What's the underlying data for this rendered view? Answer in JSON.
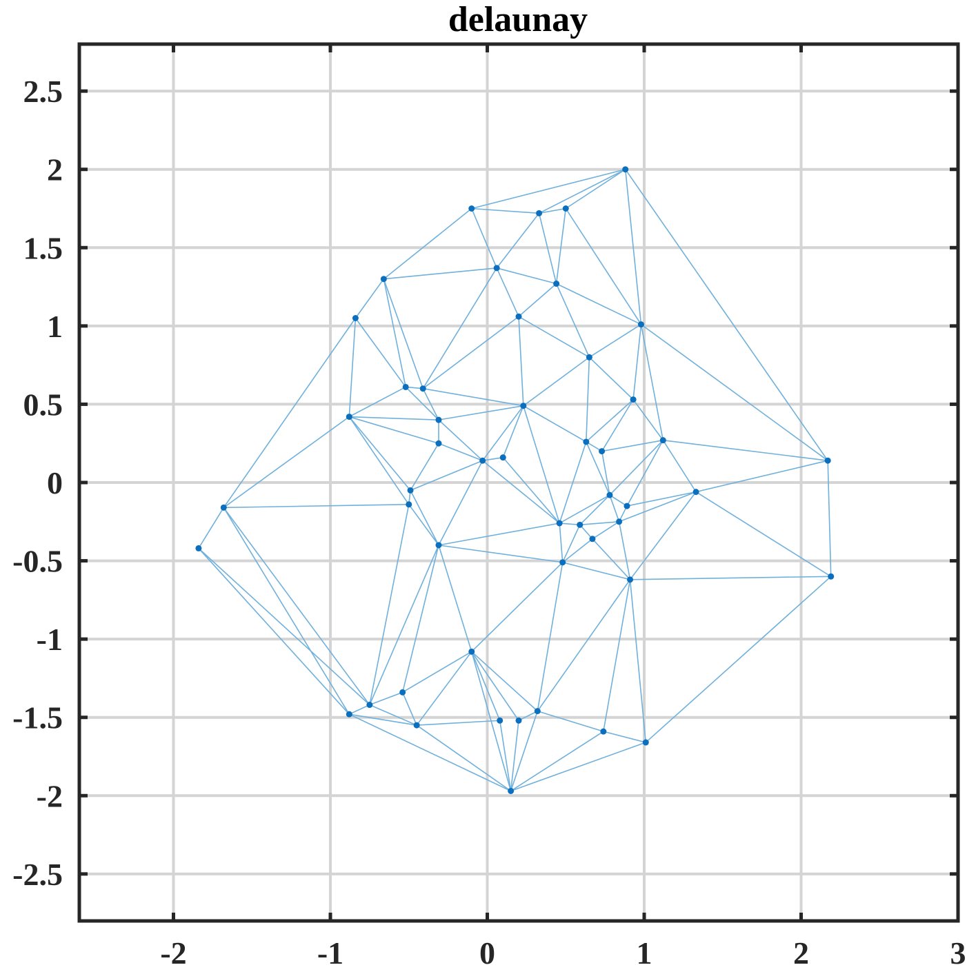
{
  "chart_data": {
    "type": "scatter",
    "title": "delaunay",
    "xlabel": "",
    "ylabel": "",
    "xlim": [
      -2.6,
      3
    ],
    "ylim": [
      -2.8,
      2.8
    ],
    "xticks": [
      -2,
      -1,
      0,
      1,
      2,
      3
    ],
    "xtick_labels": [
      "-2",
      "-1",
      "0",
      "1",
      "2",
      "3"
    ],
    "yticks": [
      2.5,
      2,
      1.5,
      1,
      0.5,
      0,
      -0.5,
      -1,
      -1.5,
      -2,
      -2.5
    ],
    "ytick_labels": [
      "2.5",
      "2",
      "1.5",
      "1",
      "0.5",
      "0",
      "-0.5",
      "-1",
      "-1.5",
      "-2",
      "-2.5"
    ],
    "grid": true,
    "colors": {
      "points": "#0b6fbe",
      "edges": "#6fb0dc",
      "axes": "#262626",
      "grid": "#d4d4d4"
    },
    "points": [
      [
        0.88,
        2.0
      ],
      [
        -0.1,
        1.75
      ],
      [
        0.33,
        1.72
      ],
      [
        0.5,
        1.75
      ],
      [
        0.06,
        1.37
      ],
      [
        -0.66,
        1.3
      ],
      [
        0.44,
        1.27
      ],
      [
        -0.84,
        1.05
      ],
      [
        0.2,
        1.06
      ],
      [
        0.98,
        1.01
      ],
      [
        0.65,
        0.8
      ],
      [
        0.93,
        0.53
      ],
      [
        -0.52,
        0.61
      ],
      [
        -0.41,
        0.6
      ],
      [
        -0.88,
        0.42
      ],
      [
        -0.31,
        0.4
      ],
      [
        0.23,
        0.49
      ],
      [
        0.63,
        0.26
      ],
      [
        1.12,
        0.27
      ],
      [
        -0.31,
        0.25
      ],
      [
        -0.03,
        0.14
      ],
      [
        0.1,
        0.16
      ],
      [
        0.73,
        0.2
      ],
      [
        2.17,
        0.14
      ],
      [
        -0.49,
        -0.05
      ],
      [
        0.78,
        -0.08
      ],
      [
        1.33,
        -0.06
      ],
      [
        -1.68,
        -0.16
      ],
      [
        -0.5,
        -0.14
      ],
      [
        0.89,
        -0.15
      ],
      [
        0.46,
        -0.26
      ],
      [
        0.59,
        -0.27
      ],
      [
        0.84,
        -0.25
      ],
      [
        0.67,
        -0.36
      ],
      [
        -1.84,
        -0.42
      ],
      [
        -0.31,
        -0.4
      ],
      [
        0.48,
        -0.51
      ],
      [
        0.91,
        -0.62
      ],
      [
        2.19,
        -0.6
      ],
      [
        -0.1,
        -1.08
      ],
      [
        -0.54,
        -1.34
      ],
      [
        -0.75,
        -1.42
      ],
      [
        -0.88,
        -1.48
      ],
      [
        0.32,
        -1.46
      ],
      [
        -0.45,
        -1.55
      ],
      [
        0.08,
        -1.52
      ],
      [
        0.2,
        -1.52
      ],
      [
        0.74,
        -1.59
      ],
      [
        1.01,
        -1.66
      ],
      [
        0.15,
        -1.97
      ]
    ],
    "triangles": [
      [
        0,
        1,
        2
      ],
      [
        0,
        2,
        3
      ],
      [
        0,
        3,
        9
      ],
      [
        0,
        9,
        23
      ],
      [
        1,
        2,
        4
      ],
      [
        1,
        4,
        5
      ],
      [
        2,
        3,
        6
      ],
      [
        2,
        4,
        6
      ],
      [
        3,
        6,
        9
      ],
      [
        4,
        5,
        13
      ],
      [
        4,
        6,
        8
      ],
      [
        4,
        8,
        13
      ],
      [
        5,
        7,
        12
      ],
      [
        5,
        12,
        13
      ],
      [
        6,
        8,
        10
      ],
      [
        6,
        9,
        10
      ],
      [
        7,
        12,
        14
      ],
      [
        7,
        14,
        27
      ],
      [
        8,
        13,
        16
      ],
      [
        8,
        10,
        16
      ],
      [
        9,
        10,
        11
      ],
      [
        9,
        11,
        18
      ],
      [
        9,
        18,
        23
      ],
      [
        10,
        16,
        17
      ],
      [
        10,
        11,
        17
      ],
      [
        11,
        17,
        22
      ],
      [
        11,
        18,
        22
      ],
      [
        12,
        13,
        15
      ],
      [
        12,
        14,
        15
      ],
      [
        13,
        15,
        16
      ],
      [
        14,
        15,
        19
      ],
      [
        14,
        19,
        24
      ],
      [
        14,
        24,
        28
      ],
      [
        14,
        27,
        28
      ],
      [
        15,
        16,
        20
      ],
      [
        15,
        19,
        20
      ],
      [
        16,
        20,
        21
      ],
      [
        16,
        21,
        30
      ],
      [
        16,
        17,
        30
      ],
      [
        17,
        22,
        25
      ],
      [
        17,
        25,
        30
      ],
      [
        18,
        22,
        25
      ],
      [
        18,
        25,
        29
      ],
      [
        18,
        26,
        29
      ],
      [
        18,
        23,
        26
      ],
      [
        19,
        20,
        24
      ],
      [
        20,
        24,
        35
      ],
      [
        20,
        30,
        35
      ],
      [
        20,
        21,
        30
      ],
      [
        24,
        28,
        35
      ],
      [
        25,
        29,
        32
      ],
      [
        25,
        30,
        31
      ],
      [
        25,
        31,
        32
      ],
      [
        26,
        29,
        32
      ],
      [
        26,
        32,
        37
      ],
      [
        26,
        37,
        38
      ],
      [
        23,
        26,
        38
      ],
      [
        27,
        28,
        41
      ],
      [
        27,
        34,
        41
      ],
      [
        27,
        34,
        42
      ],
      [
        28,
        35,
        41
      ],
      [
        30,
        31,
        36
      ],
      [
        30,
        35,
        36
      ],
      [
        31,
        32,
        33
      ],
      [
        31,
        33,
        36
      ],
      [
        32,
        33,
        37
      ],
      [
        33,
        36,
        37
      ],
      [
        35,
        36,
        39
      ],
      [
        35,
        39,
        40
      ],
      [
        35,
        40,
        41
      ],
      [
        36,
        37,
        43
      ],
      [
        36,
        39,
        43
      ],
      [
        37,
        38,
        48
      ],
      [
        37,
        43,
        47
      ],
      [
        37,
        47,
        48
      ],
      [
        39,
        40,
        44
      ],
      [
        39,
        44,
        45
      ],
      [
        39,
        45,
        49
      ],
      [
        39,
        46,
        49
      ],
      [
        39,
        43,
        46
      ],
      [
        40,
        41,
        44
      ],
      [
        41,
        42,
        44
      ],
      [
        42,
        44,
        49
      ],
      [
        44,
        45,
        49
      ],
      [
        43,
        46,
        49
      ],
      [
        43,
        47,
        49
      ],
      [
        47,
        48,
        49
      ]
    ]
  }
}
